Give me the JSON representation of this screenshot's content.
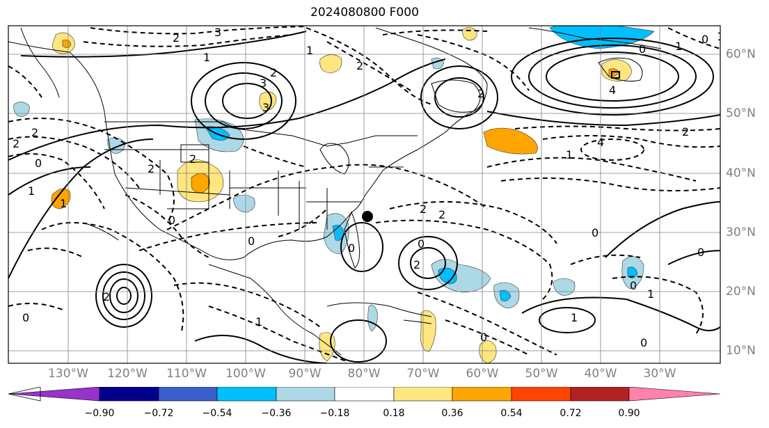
{
  "title": "2024080800 F000",
  "lon_labels": [
    "130°W",
    "120°W",
    "110°W",
    "100°W",
    "90°W",
    "80°W",
    "70°W",
    "60°W",
    "50°W",
    "40°W",
    "30°W"
  ],
  "lat_labels": [
    "60°N",
    "50°N",
    "40°N",
    "30°N",
    "20°N",
    "10°N"
  ],
  "colorbar": {
    "ticks": [
      "−0.90",
      "−0.72",
      "−0.54",
      "−0.36",
      "−0.18",
      "0.18",
      "0.36",
      "0.54",
      "0.72",
      "0.90"
    ],
    "colors": [
      "#9932cc",
      "#00008b",
      "#3a5fcd",
      "#00bfff",
      "#add8e6",
      "#ffffff",
      "#ffe680",
      "#ffa500",
      "#ff4500",
      "#b22222",
      "#ff82ab"
    ]
  },
  "contour_labels": [
    "3",
    "2",
    "1",
    "2",
    "3",
    "3",
    "2",
    "1",
    "0",
    "1",
    "0",
    "4",
    "4",
    "2",
    "2",
    "1",
    "2",
    "2",
    "0",
    "1",
    "0",
    "2",
    "0",
    "2",
    "2",
    "2",
    "1",
    "0",
    "0",
    "0",
    "1",
    "0",
    "0",
    "1",
    "1",
    "0",
    "2",
    "2",
    "0",
    "0",
    "1"
  ]
}
